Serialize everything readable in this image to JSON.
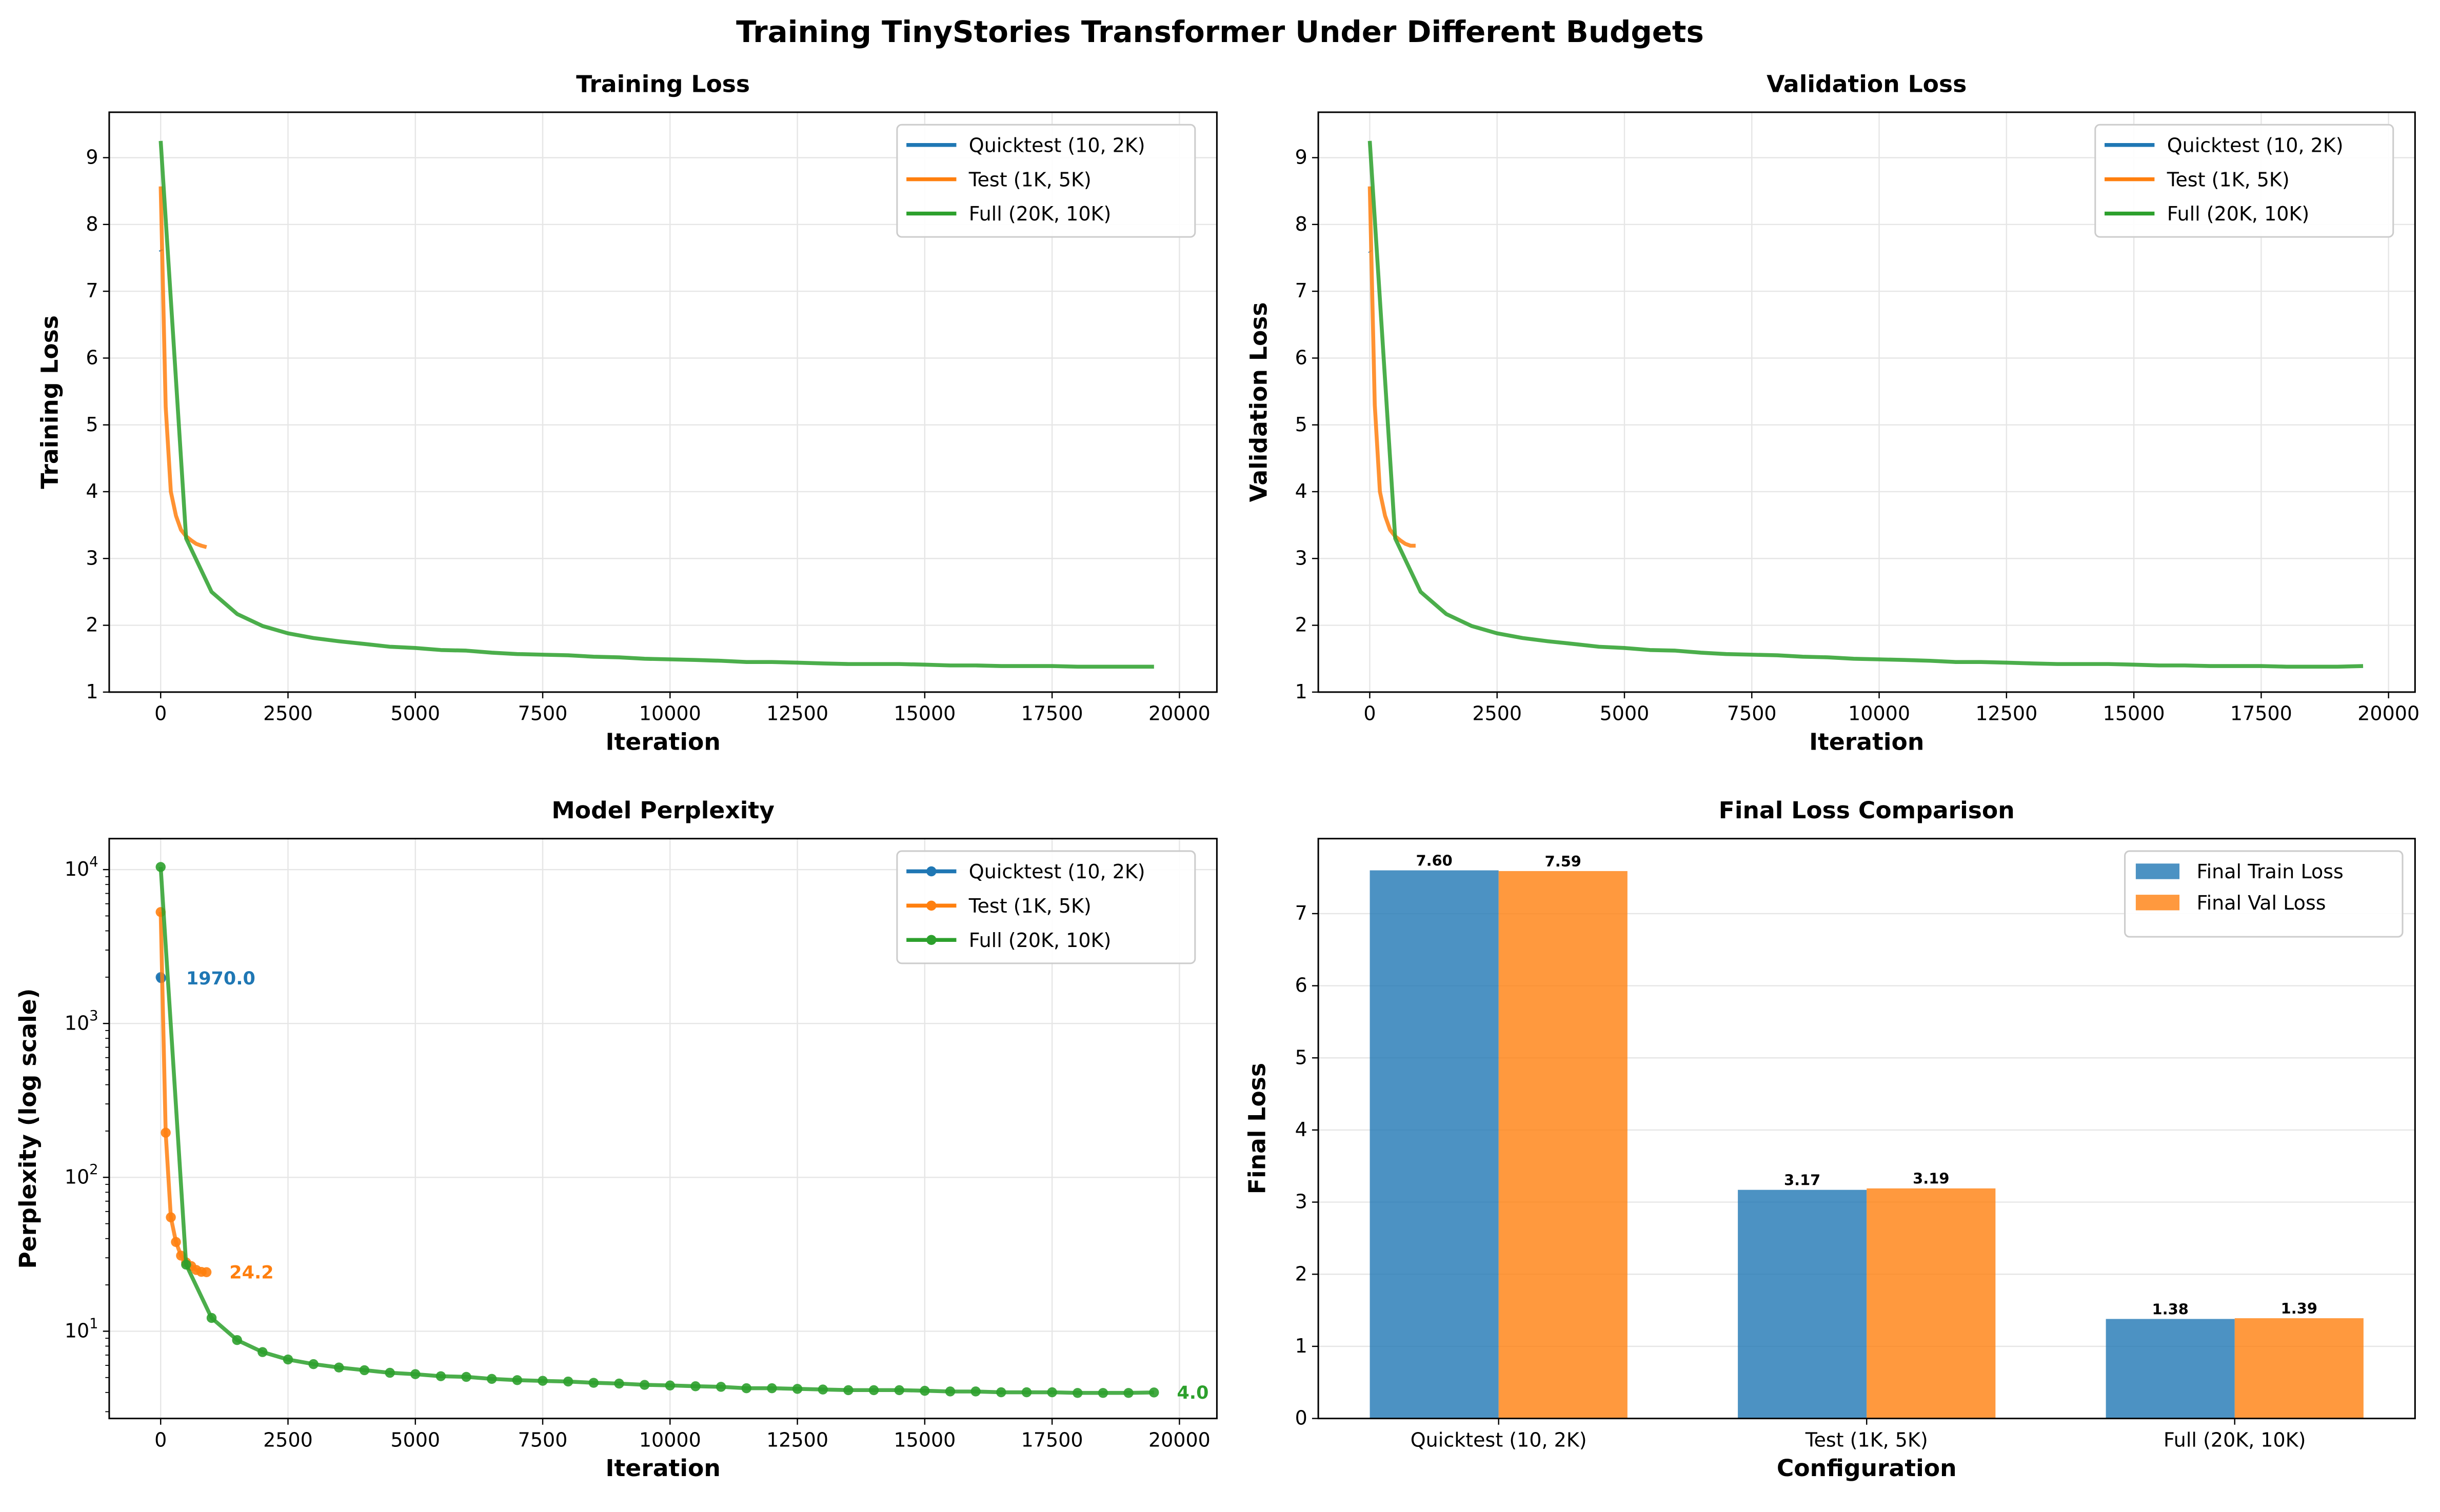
{
  "title": "Training TinyStories Transformer Under Different Budgets",
  "colors": {
    "quicktest": "#1f77b4",
    "test": "#ff7f0e",
    "full": "#2ca02c"
  },
  "chart_data": [
    {
      "type": "line",
      "title": "Training Loss",
      "xlabel": "Iteration",
      "ylabel": "Training Loss",
      "xlim": [
        -1010,
        20735
      ],
      "ylim": [
        1,
        9.68
      ],
      "xticks": [
        0,
        2500,
        5000,
        7500,
        10000,
        12500,
        15000,
        17500,
        20000
      ],
      "yticks": [
        1,
        2,
        3,
        4,
        5,
        6,
        7,
        8,
        9
      ],
      "grid": true,
      "legend": "top-right",
      "series": [
        {
          "name": "Quicktest (10, 2K)",
          "color": "#1f77b4",
          "x": [
            0,
            10
          ],
          "y": [
            7.62,
            7.6
          ]
        },
        {
          "name": "Test (1K, 5K)",
          "color": "#ff7f0e",
          "x": [
            0,
            100,
            200,
            300,
            400,
            500,
            600,
            700,
            800,
            900
          ],
          "y": [
            8.57,
            5.27,
            4.0,
            3.64,
            3.43,
            3.33,
            3.27,
            3.22,
            3.19,
            3.17
          ]
        },
        {
          "name": "Full (20K, 10K)",
          "color": "#2ca02c",
          "x": [
            0,
            500,
            1000,
            1500,
            2000,
            2500,
            3000,
            3500,
            4000,
            4500,
            5000,
            5500,
            6000,
            6500,
            7000,
            7500,
            8000,
            8500,
            9000,
            9500,
            10000,
            10500,
            11000,
            11500,
            12000,
            12500,
            13000,
            13500,
            14000,
            14500,
            15000,
            15500,
            16000,
            16500,
            17000,
            17500,
            18000,
            18500,
            19000,
            19500
          ],
          "y": [
            9.25,
            3.3,
            2.5,
            2.17,
            1.99,
            1.88,
            1.81,
            1.76,
            1.72,
            1.68,
            1.66,
            1.63,
            1.62,
            1.59,
            1.57,
            1.56,
            1.55,
            1.53,
            1.52,
            1.5,
            1.49,
            1.48,
            1.47,
            1.45,
            1.45,
            1.44,
            1.43,
            1.42,
            1.42,
            1.42,
            1.41,
            1.4,
            1.4,
            1.39,
            1.39,
            1.39,
            1.38,
            1.38,
            1.38,
            1.38
          ]
        }
      ]
    },
    {
      "type": "line",
      "title": "Validation Loss",
      "xlabel": "Iteration",
      "ylabel": "Validation Loss",
      "xlim": [
        -1010,
        20520
      ],
      "ylim": [
        1,
        9.68
      ],
      "xticks": [
        0,
        2500,
        5000,
        7500,
        10000,
        12500,
        15000,
        17500,
        20000
      ],
      "yticks": [
        1,
        2,
        3,
        4,
        5,
        6,
        7,
        8,
        9
      ],
      "grid": true,
      "legend": "top-right",
      "series": [
        {
          "name": "Quicktest (10, 2K)",
          "color": "#1f77b4",
          "x": [
            0,
            10
          ],
          "y": [
            7.6,
            7.59
          ]
        },
        {
          "name": "Test (1K, 5K)",
          "color": "#ff7f0e",
          "x": [
            0,
            100,
            200,
            300,
            400,
            500,
            600,
            700,
            800,
            900
          ],
          "y": [
            8.57,
            5.3,
            4.0,
            3.64,
            3.43,
            3.33,
            3.27,
            3.22,
            3.19,
            3.19
          ]
        },
        {
          "name": "Full (20K, 10K)",
          "color": "#2ca02c",
          "x": [
            0,
            500,
            1000,
            1500,
            2000,
            2500,
            3000,
            3500,
            4000,
            4500,
            5000,
            5500,
            6000,
            6500,
            7000,
            7500,
            8000,
            8500,
            9000,
            9500,
            10000,
            10500,
            11000,
            11500,
            12000,
            12500,
            13000,
            13500,
            14000,
            14500,
            15000,
            15500,
            16000,
            16500,
            17000,
            17500,
            18000,
            18500,
            19000,
            19500
          ],
          "y": [
            9.25,
            3.3,
            2.5,
            2.17,
            1.99,
            1.88,
            1.81,
            1.76,
            1.72,
            1.68,
            1.66,
            1.63,
            1.62,
            1.59,
            1.57,
            1.56,
            1.55,
            1.53,
            1.52,
            1.5,
            1.49,
            1.48,
            1.47,
            1.45,
            1.45,
            1.44,
            1.43,
            1.42,
            1.42,
            1.42,
            1.41,
            1.4,
            1.4,
            1.39,
            1.39,
            1.39,
            1.38,
            1.38,
            1.38,
            1.39
          ]
        }
      ]
    },
    {
      "type": "line",
      "title": "Model Perplexity",
      "xlabel": "Iteration",
      "ylabel": "Perplexity (log scale)",
      "yscale": "log",
      "xlim": [
        -1010,
        20735
      ],
      "ylim": [
        2.71,
        15900
      ],
      "xticks": [
        0,
        2500,
        5000,
        7500,
        10000,
        12500,
        15000,
        17500,
        20000
      ],
      "yticks": [
        10,
        100,
        1000,
        10000
      ],
      "ytick_labels": [
        [
          "10",
          "1"
        ],
        [
          "10",
          "2"
        ],
        [
          "10",
          "3"
        ],
        [
          "10",
          "4"
        ]
      ],
      "grid": true,
      "legend": "top-right",
      "markers": true,
      "series": [
        {
          "name": "Quicktest (10, 2K)",
          "color": "#1f77b4",
          "x": [
            0,
            10
          ],
          "y": [
            2000,
            1970
          ]
        },
        {
          "name": "Test (1K, 5K)",
          "color": "#ff7f0e",
          "x": [
            0,
            100,
            200,
            300,
            400,
            500,
            600,
            700,
            800,
            900
          ],
          "y": [
            5300,
            195,
            55,
            38,
            31,
            28,
            26.5,
            25,
            24.3,
            24.2
          ]
        },
        {
          "name": "Full (20K, 10K)",
          "color": "#2ca02c",
          "x": [
            0,
            500,
            1000,
            1500,
            2000,
            2500,
            3000,
            3500,
            4000,
            4500,
            5000,
            5500,
            6000,
            6500,
            7000,
            7500,
            8000,
            8500,
            9000,
            9500,
            10000,
            10500,
            11000,
            11500,
            12000,
            12500,
            13000,
            13500,
            14000,
            14500,
            15000,
            15500,
            16000,
            16500,
            17000,
            17500,
            18000,
            18500,
            19000,
            19500
          ],
          "y": [
            10400,
            27.1,
            12.2,
            8.76,
            7.32,
            6.55,
            6.11,
            5.81,
            5.58,
            5.37,
            5.26,
            5.1,
            5.05,
            4.9,
            4.81,
            4.76,
            4.71,
            4.62,
            4.57,
            4.48,
            4.44,
            4.39,
            4.35,
            4.26,
            4.26,
            4.22,
            4.18,
            4.14,
            4.14,
            4.14,
            4.1,
            4.06,
            4.06,
            4.01,
            4.01,
            4.01,
            3.97,
            3.97,
            3.97,
            4.0
          ]
        }
      ],
      "annotations": [
        {
          "text": "1970.0",
          "color": "#1f77b4",
          "x": 500,
          "y": 1970
        },
        {
          "text": "24.2",
          "color": "#ff7f0e",
          "x": 1350,
          "y": 24.2
        },
        {
          "text": "4.0",
          "color": "#2ca02c",
          "x": 19950,
          "y": 4.0
        }
      ]
    },
    {
      "type": "bar",
      "title": "Final Loss Comparison",
      "xlabel": "Configuration",
      "ylabel": "Final Loss",
      "categories": [
        "Quicktest (10, 2K)",
        "Test (1K, 5K)",
        "Full (20K, 10K)"
      ],
      "ylim": [
        0,
        8.04
      ],
      "yticks": [
        0,
        1,
        2,
        3,
        4,
        5,
        6,
        7
      ],
      "grid": true,
      "legend": "top-right",
      "series": [
        {
          "name": "Final Train Loss",
          "color": "#1f77b4",
          "values": [
            7.6,
            3.17,
            1.38
          ],
          "labels": [
            "7.60",
            "3.17",
            "1.38"
          ]
        },
        {
          "name": "Final Val Loss",
          "color": "#ff7f0e",
          "values": [
            7.59,
            3.19,
            1.39
          ],
          "labels": [
            "7.59",
            "3.19",
            "1.39"
          ]
        }
      ]
    }
  ]
}
